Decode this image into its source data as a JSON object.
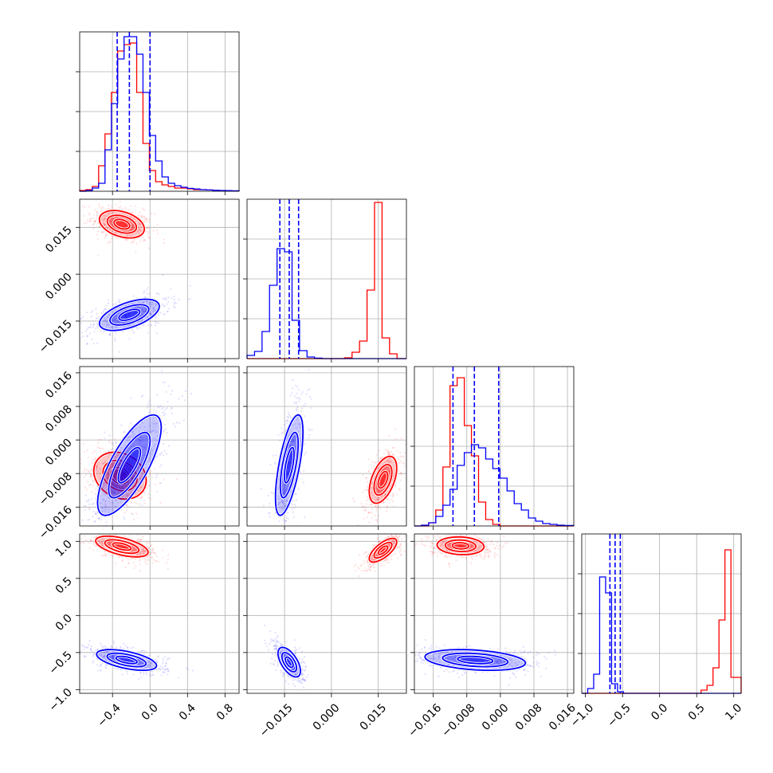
{
  "colors": {
    "red": "#ff0000",
    "blue": "#0000ff",
    "grid": "#b0b0b0",
    "frame": "#000000"
  },
  "chart_data": {
    "type": "corner",
    "parameters": 4,
    "grid": true,
    "series": [
      {
        "name": "",
        "color": "#ff0000"
      },
      {
        "name": "",
        "color": "#0000ff"
      }
    ],
    "axes": [
      {
        "range": [
          -0.75,
          0.95
        ],
        "ticks": [
          -0.4,
          0.0,
          0.4,
          0.8
        ],
        "tick_labels": [
          "−0.4",
          "0.0",
          "0.4",
          "0.8"
        ]
      },
      {
        "range": [
          -0.027,
          0.024
        ],
        "ticks": [
          -0.015,
          0.0,
          0.015
        ],
        "tick_labels": [
          "−0.015",
          "0.000",
          "0.015"
        ]
      },
      {
        "range": [
          -0.0205,
          0.0175
        ],
        "ticks": [
          -0.016,
          -0.008,
          0.0,
          0.008,
          0.016
        ],
        "tick_labels": [
          "−0.016",
          "−0.008",
          "0.000",
          "0.008",
          "0.016"
        ]
      },
      {
        "range": [
          -1.05,
          1.1
        ],
        "ticks": [
          -1.0,
          -0.5,
          0.0,
          0.5,
          1.0
        ],
        "tick_labels": [
          "−1.0",
          "−0.5",
          "0.0",
          "0.5",
          "1.0"
        ]
      }
    ],
    "quantiles_blue": [
      [
        -0.35,
        -0.22,
        0.0
      ],
      [
        -0.0165,
        -0.0135,
        -0.0105
      ],
      [
        -0.0113,
        -0.0062,
        -0.0004
      ],
      [
        -0.67,
        -0.6,
        -0.53
      ]
    ],
    "histograms": [
      {
        "bins": [
          -0.75,
          -0.683,
          -0.615,
          -0.548,
          -0.48,
          -0.412,
          -0.345,
          -0.277,
          -0.21,
          -0.142,
          -0.075,
          -0.007,
          0.06,
          0.128,
          0.195,
          0.263,
          0.33,
          0.398,
          0.465,
          0.533,
          0.6,
          0.668,
          0.735,
          0.803,
          0.87,
          0.95
        ],
        "red": [
          0.005,
          0.01,
          0.03,
          0.16,
          0.36,
          0.62,
          0.88,
          0.92,
          0.93,
          0.62,
          0.3,
          0.13,
          0.06,
          0.04,
          0.03,
          0.02,
          0.02,
          0.015,
          0.01,
          0.01,
          0.008,
          0.005,
          0.004,
          0.003,
          0.002
        ],
        "blue": [
          0.0,
          0.005,
          0.02,
          0.05,
          0.26,
          0.55,
          0.83,
          0.97,
          0.97,
          0.86,
          0.62,
          0.35,
          0.19,
          0.09,
          0.05,
          0.035,
          0.025,
          0.018,
          0.014,
          0.01,
          0.008,
          0.006,
          0.005,
          0.004,
          0.003
        ]
      },
      {
        "bins": [
          -0.027,
          -0.0246,
          -0.0222,
          -0.0198,
          -0.0174,
          -0.015,
          -0.0126,
          -0.0102,
          -0.0078,
          -0.0054,
          -0.003,
          -0.0006,
          0.0018,
          0.0042,
          0.0066,
          0.009,
          0.0114,
          0.0138,
          0.0162,
          0.0186,
          0.021,
          0.024
        ],
        "red": [
          0,
          0,
          0,
          0,
          0,
          0,
          0,
          0,
          0,
          0,
          0,
          0,
          0,
          0.005,
          0.04,
          0.11,
          0.43,
          0.98,
          0.13,
          0.03,
          0
        ],
        "blue": [
          0.02,
          0.045,
          0.17,
          0.46,
          0.69,
          0.67,
          0.24,
          0.05,
          0.01,
          0.003,
          0,
          0,
          0,
          0,
          0,
          0,
          0,
          0,
          0,
          0,
          0
        ]
      },
      {
        "bins": [
          -0.0205,
          -0.0188,
          -0.0171,
          -0.0154,
          -0.0137,
          -0.012,
          -0.0103,
          -0.0086,
          -0.0069,
          -0.0052,
          -0.0035,
          -0.0018,
          -0.0001,
          0.0016,
          0.0033,
          0.005,
          0.0067,
          0.0084,
          0.0101,
          0.0118,
          0.0135,
          0.0152,
          0.0175
        ],
        "red": [
          0.0,
          0.0,
          0.02,
          0.1,
          0.37,
          0.88,
          0.93,
          0.63,
          0.44,
          0.15,
          0.04,
          0.01,
          0.0,
          0.0,
          0.0,
          0.0,
          0.0,
          0.0,
          0.0,
          0.0,
          0.0,
          0.0
        ],
        "blue": [
          0.0,
          0.005,
          0.02,
          0.06,
          0.13,
          0.23,
          0.38,
          0.46,
          0.51,
          0.49,
          0.42,
          0.36,
          0.3,
          0.22,
          0.14,
          0.1,
          0.05,
          0.03,
          0.015,
          0.01,
          0.005,
          0.003
        ]
      },
      {
        "bins": [
          -1.05,
          -0.9695,
          -0.889,
          -0.8085,
          -0.728,
          -0.6475,
          -0.567,
          -0.4865,
          -0.406,
          -0.3255,
          -0.245,
          -0.1645,
          -0.084,
          -0.0035,
          0.077,
          0.1575,
          0.238,
          0.3185,
          0.399,
          0.4795,
          0.56,
          0.6405,
          0.721,
          0.8015,
          0.882,
          0.9625,
          1.1
        ],
        "red": [
          0,
          0,
          0,
          0,
          0,
          0,
          0,
          0,
          0,
          0,
          0,
          0,
          0,
          0,
          0,
          0,
          0,
          0,
          0,
          0,
          0.02,
          0.05,
          0.16,
          0.46,
          0.9,
          0.1
        ],
        "blue": [
          0.0,
          0.03,
          0.12,
          0.73,
          0.63,
          0.06,
          0.01,
          0.0,
          0.0,
          0.0,
          0.0,
          0.0,
          0.0,
          0.0,
          0.0,
          0.0,
          0.0,
          0.0,
          0.0,
          0.0,
          0.0,
          0.0,
          0.0,
          0.0,
          0.0,
          0.0
        ]
      }
    ],
    "clusters": [
      {
        "row": 1,
        "col": 0,
        "red": {
          "center": [
            -0.3,
            0.016
          ],
          "sd": [
            0.12,
            0.0022
          ],
          "rho": -0.35
        },
        "blue": {
          "center": [
            -0.22,
            -0.013
          ],
          "sd": [
            0.16,
            0.0025
          ],
          "rho": 0.55
        }
      },
      {
        "row": 2,
        "col": 0,
        "red": {
          "center": [
            -0.32,
            -0.0085
          ],
          "sd": [
            0.14,
            0.0028
          ],
          "rho": -0.2
        },
        "blue": {
          "center": [
            -0.22,
            -0.006
          ],
          "sd": [
            0.17,
            0.006
          ],
          "rho": 0.75
        }
      },
      {
        "row": 2,
        "col": 1,
        "red": {
          "center": [
            0.0165,
            -0.0095
          ],
          "sd": [
            0.0022,
            0.0028
          ],
          "rho": 0.5
        },
        "blue": {
          "center": [
            -0.0135,
            -0.006
          ],
          "sd": [
            0.0022,
            0.006
          ],
          "rho": 0.65
        }
      },
      {
        "row": 3,
        "col": 0,
        "red": {
          "center": [
            -0.3,
            0.93
          ],
          "sd": [
            0.14,
            0.07
          ],
          "rho": -0.55
        },
        "blue": {
          "center": [
            -0.25,
            -0.6
          ],
          "sd": [
            0.16,
            0.07
          ],
          "rho": -0.55
        }
      },
      {
        "row": 3,
        "col": 1,
        "red": {
          "center": [
            0.0165,
            0.88
          ],
          "sd": [
            0.0022,
            0.08
          ],
          "rho": 0.7
        },
        "blue": {
          "center": [
            -0.0135,
            -0.63
          ],
          "sd": [
            0.0018,
            0.1
          ],
          "rho": -0.6
        }
      },
      {
        "row": 3,
        "col": 2,
        "red": {
          "center": [
            -0.0095,
            0.94
          ],
          "sd": [
            0.0028,
            0.06
          ],
          "rho": -0.1
        },
        "blue": {
          "center": [
            -0.006,
            -0.6
          ],
          "sd": [
            0.006,
            0.07
          ],
          "rho": -0.3
        }
      }
    ]
  }
}
